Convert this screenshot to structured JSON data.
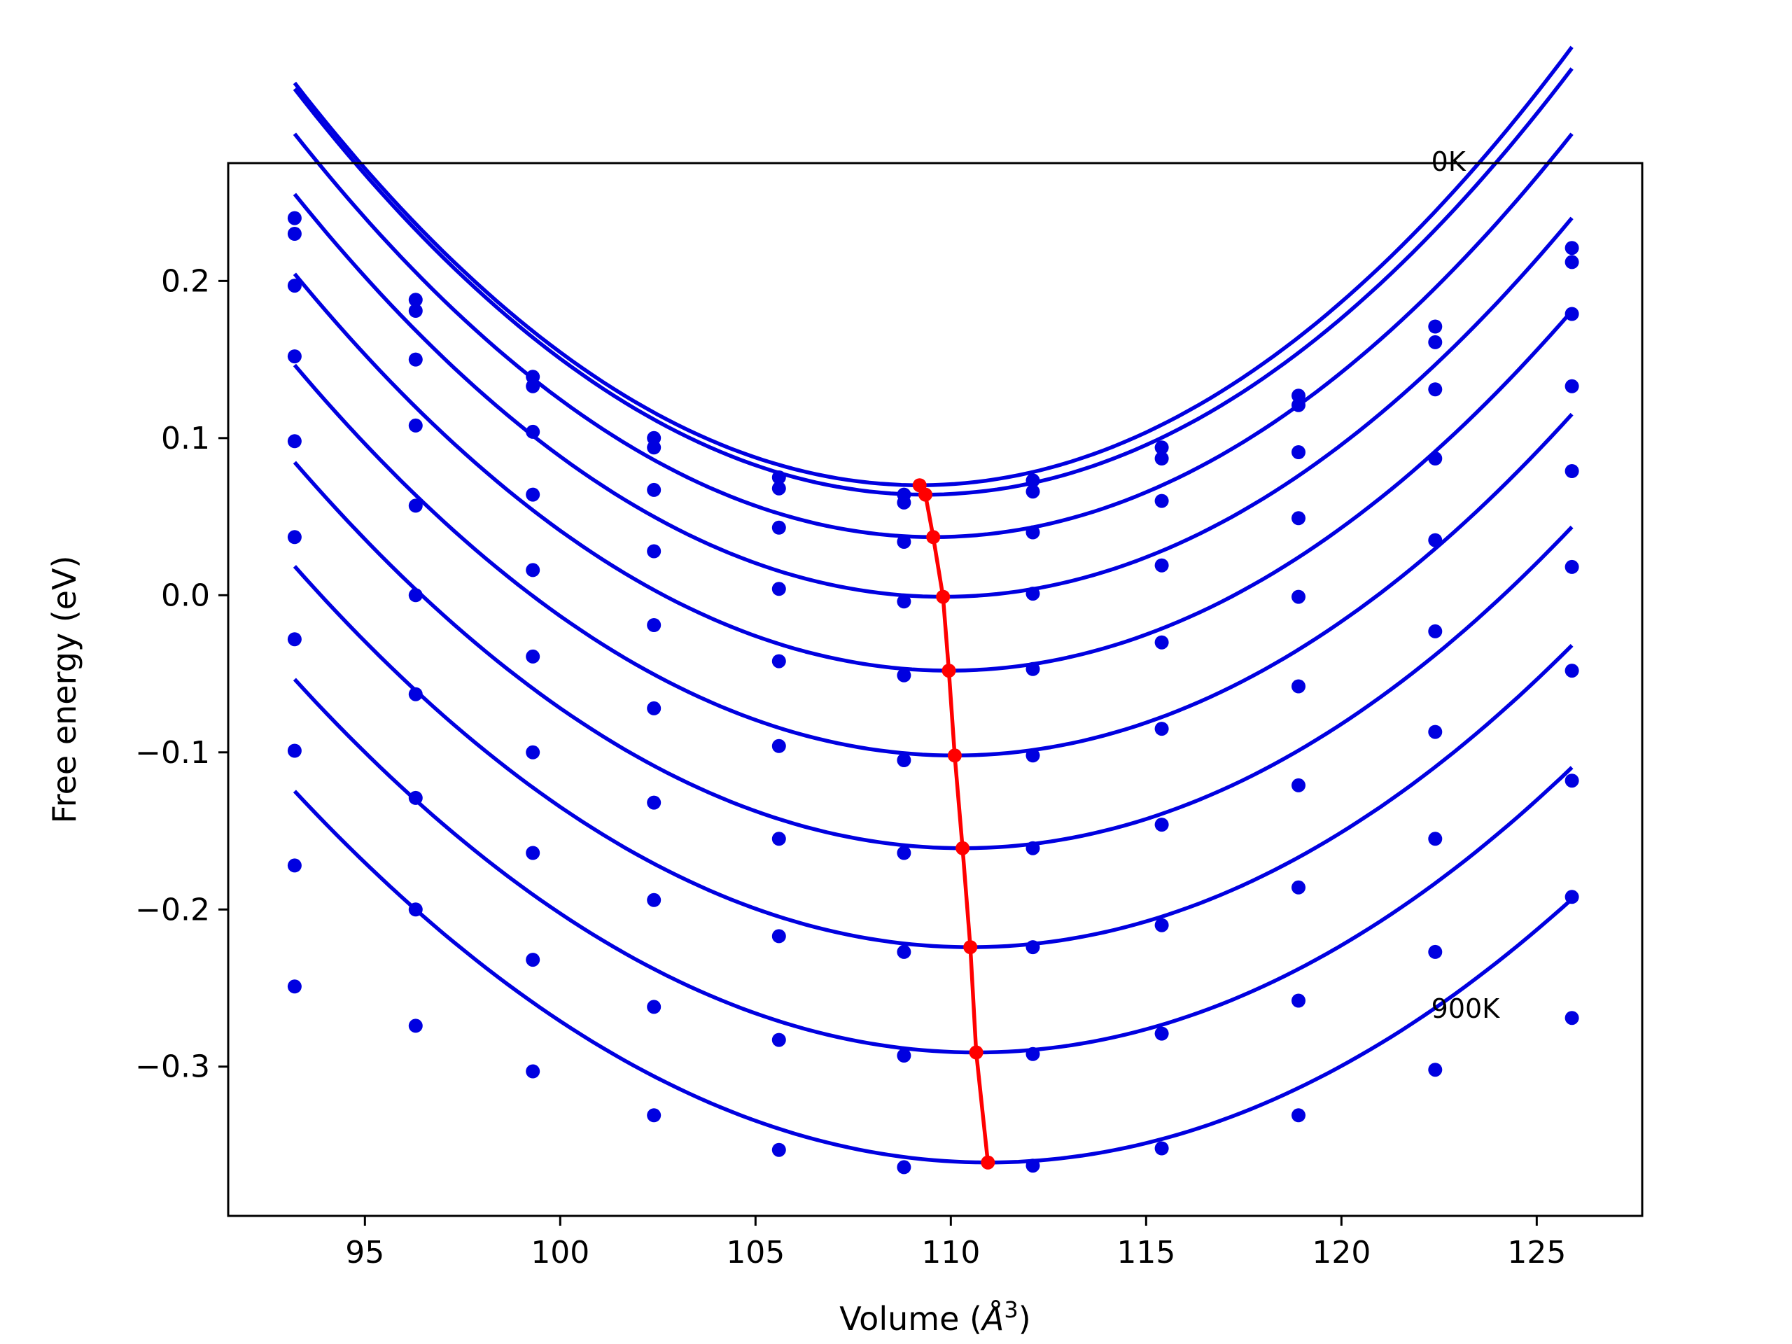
{
  "chart_data": {
    "type": "scatter",
    "title": "",
    "xlabel": "Volume (",
    "xlabel_unit": "Å",
    "xlabel_sup": "3",
    "xlabel_close": ")",
    "ylabel": "Free energy (eV)",
    "xlim": [
      91.5,
      127.7
    ],
    "ylim": [
      -0.395,
      0.275
    ],
    "xticks": [
      95,
      100,
      105,
      110,
      115,
      120,
      125
    ],
    "xtick_labels": [
      "95",
      "100",
      "105",
      "110",
      "115",
      "120",
      "125"
    ],
    "yticks": [
      0.2,
      0.1,
      0.0,
      -0.1,
      -0.2,
      -0.3
    ],
    "ytick_labels": [
      "0.2",
      "0.1",
      "0.0",
      "−0.1",
      "−0.2",
      "−0.3"
    ],
    "grid": false,
    "annotations": [
      {
        "text": "0K",
        "x": 122.3,
        "y": 0.27
      },
      {
        "text": "900K",
        "x": 122.3,
        "y": -0.269
      }
    ],
    "colors": {
      "series": "#0000e0",
      "minima": "#ff0000"
    },
    "x": [
      93.2,
      96.3,
      99.3,
      102.4,
      105.6,
      108.8,
      112.1,
      115.4,
      118.9,
      122.4,
      125.9
    ],
    "series": [
      {
        "values": [
          0.24,
          0.188,
          0.139,
          0.1,
          0.075,
          0.064,
          0.073,
          0.094,
          0.127,
          0.171,
          0.221
        ],
        "fit": {
          "a": 0.001,
          "v0": 109.2,
          "e0": 0.07
        }
      },
      {
        "values": [
          0.23,
          0.181,
          0.133,
          0.094,
          0.068,
          0.059,
          0.066,
          0.087,
          0.121,
          0.161,
          0.212
        ],
        "fit": {
          "a": 0.00099,
          "v0": 109.35,
          "e0": 0.064
        }
      },
      {
        "values": [
          0.197,
          0.15,
          0.104,
          0.067,
          0.043,
          0.034,
          0.04,
          0.06,
          0.091,
          0.131,
          0.179
        ],
        "fit": {
          "a": 0.00096,
          "v0": 109.55,
          "e0": 0.037
        }
      },
      {
        "values": [
          0.152,
          0.108,
          0.064,
          0.028,
          0.004,
          -0.004,
          0.001,
          0.019,
          0.049,
          0.087,
          0.133
        ],
        "fit": {
          "a": 0.00093,
          "v0": 109.8,
          "e0": -0.001
        }
      },
      {
        "values": [
          0.098,
          0.057,
          0.016,
          -0.019,
          -0.042,
          -0.051,
          -0.047,
          -0.03,
          -0.001,
          0.035,
          0.079
        ],
        "fit": {
          "a": 0.0009,
          "v0": 109.95,
          "e0": -0.048
        }
      },
      {
        "values": [
          0.037,
          0.0,
          -0.039,
          -0.072,
          -0.096,
          -0.105,
          -0.102,
          -0.085,
          -0.058,
          -0.023,
          0.018
        ],
        "fit": {
          "a": 0.00087,
          "v0": 110.1,
          "e0": -0.102
        }
      },
      {
        "values": [
          -0.028,
          -0.063,
          -0.1,
          -0.132,
          -0.155,
          -0.164,
          -0.161,
          -0.146,
          -0.121,
          -0.087,
          -0.048
        ],
        "fit": {
          "a": 0.00084,
          "v0": 110.3,
          "e0": -0.161
        }
      },
      {
        "values": [
          -0.099,
          -0.129,
          -0.164,
          -0.194,
          -0.217,
          -0.227,
          -0.224,
          -0.21,
          -0.186,
          -0.155,
          -0.118
        ],
        "fit": {
          "a": 0.00081,
          "v0": 110.5,
          "e0": -0.224
        }
      },
      {
        "values": [
          -0.172,
          -0.2,
          -0.232,
          -0.262,
          -0.283,
          -0.293,
          -0.292,
          -0.279,
          -0.258,
          -0.227,
          -0.192
        ],
        "fit": {
          "a": 0.00078,
          "v0": 110.65,
          "e0": -0.291
        }
      },
      {
        "values": [
          -0.249,
          -0.274,
          -0.303,
          -0.331,
          -0.353,
          -0.364,
          -0.363,
          -0.352,
          -0.331,
          -0.302,
          -0.269
        ],
        "fit": {
          "a": 0.00075,
          "v0": 110.95,
          "e0": -0.361
        }
      }
    ],
    "minima": {
      "x": [
        109.2,
        109.35,
        109.55,
        109.8,
        109.95,
        110.1,
        110.3,
        110.5,
        110.65,
        110.95
      ],
      "y": [
        0.07,
        0.064,
        0.037,
        -0.001,
        -0.048,
        -0.102,
        -0.161,
        -0.224,
        -0.291,
        -0.361
      ]
    }
  }
}
